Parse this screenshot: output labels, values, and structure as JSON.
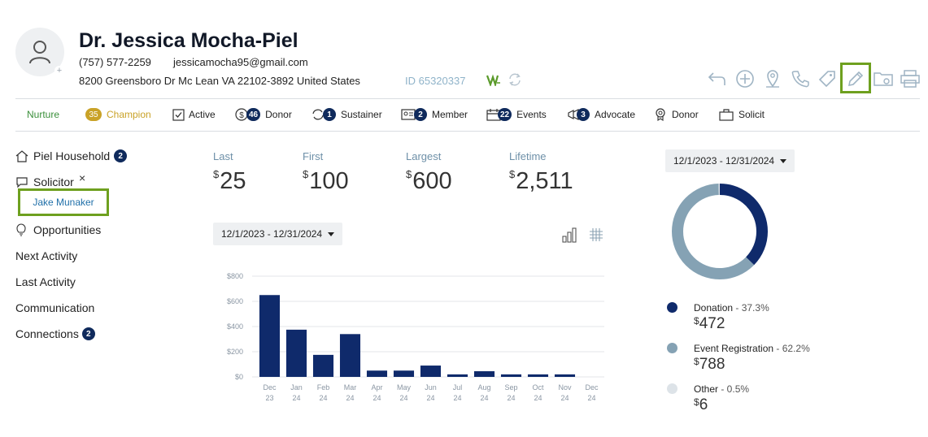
{
  "header": {
    "name": "Dr. Jessica Mocha-Piel",
    "phone": "(757) 577-2259",
    "email": "jessicamocha95@gmail.com",
    "address": "8200 Greensboro Dr Mc Lean VA 22102-3892 United States",
    "id_text": "ID 65320337",
    "icons": [
      "back-arrow-icon",
      "add-circle-icon",
      "location-pin-icon",
      "phone-icon",
      "tag-icon",
      "pencil-icon",
      "folder-settings-icon",
      "print-icon"
    ]
  },
  "strip": {
    "nurture": "Nurture",
    "champion_count": "35",
    "champion": "Champion",
    "active": "Active",
    "donor_count": "46",
    "donor": "Donor",
    "sustainer_count": "1",
    "sustainer": "Sustainer",
    "member_count": "2",
    "member": "Member",
    "events_count": "22",
    "events": "Events",
    "advocate_count": "3",
    "advocate": "Advocate",
    "donor2": "Donor",
    "solicit": "Solicit"
  },
  "nav": {
    "household": "Piel Household",
    "household_count": "2",
    "solicitor": "Solicitor",
    "solicitor_name": "Jake Munaker",
    "opportunities": "Opportunities",
    "next_activity": "Next Activity",
    "last_activity": "Last Activity",
    "communication": "Communication",
    "connections": "Connections",
    "connections_count": "2"
  },
  "stats": {
    "last_label": "Last",
    "last_value": "25",
    "first_label": "First",
    "first_value": "100",
    "largest_label": "Largest",
    "largest_value": "600",
    "lifetime_label": "Lifetime",
    "lifetime_value": "2,511",
    "currency": "$"
  },
  "date_range_left": "12/1/2023 - 12/31/2024",
  "date_range_right": "12/1/2023 - 12/31/2024",
  "chart_data": [
    {
      "type": "bar",
      "categories": [
        "Dec 23",
        "Jan 24",
        "Feb 24",
        "Mar 24",
        "Apr 24",
        "May 24",
        "Jun 24",
        "Jul 24",
        "Aug 24",
        "Sep 24",
        "Oct 24",
        "Nov 24",
        "Dec 24"
      ],
      "values": [
        650,
        375,
        175,
        340,
        50,
        50,
        90,
        20,
        45,
        20,
        20,
        20,
        0
      ],
      "yticks": [
        "$0",
        "$200",
        "$400",
        "$600",
        "$800"
      ],
      "ylim": [
        0,
        800
      ],
      "color": "#0f2a6b"
    },
    {
      "type": "pie",
      "donut": true,
      "labels": [
        "Donation",
        "Event Registration",
        "Other"
      ],
      "percents": [
        37.3,
        62.2,
        0.5
      ],
      "pct_text": [
        "37.3%",
        "62.2%",
        "0.5%"
      ],
      "amounts": [
        "472",
        "788",
        "6"
      ],
      "colors": [
        "#0f2a6b",
        "#85a2b4",
        "#dde3e8"
      ]
    }
  ],
  "colors": {
    "accent_green": "#6ea01f",
    "navy": "#0f2a5c",
    "champion_gold": "#c9a227"
  }
}
